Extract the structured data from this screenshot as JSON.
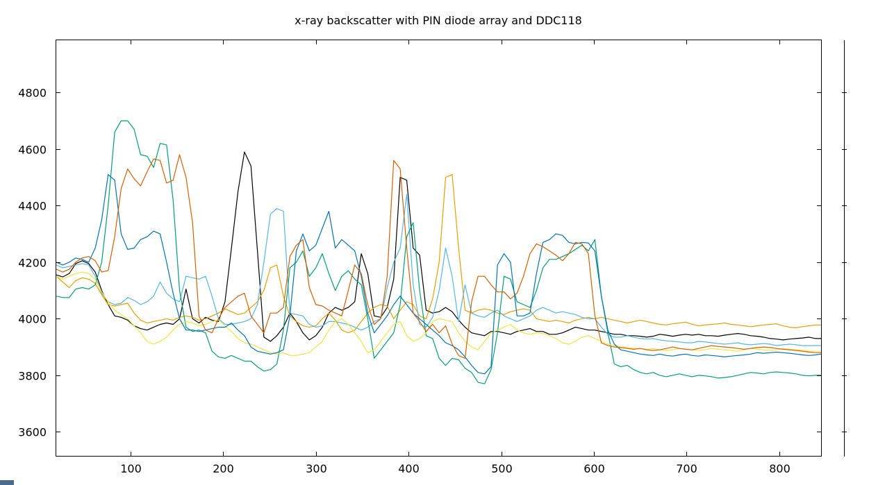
{
  "chart_data": {
    "type": "line",
    "title": "x-ray backscatter with PIN diode array and DDC118",
    "xlabel": "",
    "ylabel": "",
    "xlim": [
      20,
      845
    ],
    "ylim": [
      3515,
      4985
    ],
    "xticks": [
      100,
      200,
      300,
      400,
      500,
      600,
      700,
      800
    ],
    "yticks": [
      3600,
      3800,
      4000,
      4200,
      4400,
      4600,
      4800
    ],
    "grid": false,
    "legend": "none",
    "x": [
      20,
      27,
      34,
      41,
      48,
      55,
      62,
      69,
      76,
      83,
      90,
      97,
      104,
      111,
      118,
      125,
      132,
      139,
      146,
      153,
      160,
      167,
      174,
      181,
      188,
      195,
      202,
      209,
      216,
      223,
      230,
      237,
      244,
      251,
      258,
      265,
      272,
      279,
      286,
      293,
      300,
      307,
      314,
      321,
      328,
      335,
      342,
      349,
      356,
      363,
      370,
      377,
      384,
      391,
      398,
      405,
      412,
      419,
      426,
      433,
      440,
      447,
      454,
      461,
      468,
      475,
      482,
      489,
      496,
      503,
      510,
      517,
      524,
      531,
      538,
      545,
      552,
      559,
      566,
      573,
      580,
      587,
      594,
      601,
      608,
      615,
      622,
      629,
      636,
      643,
      650,
      657,
      664,
      671,
      678,
      685,
      692,
      699,
      706,
      713,
      720,
      727,
      734,
      741,
      748,
      755,
      762,
      769,
      776,
      783,
      790,
      797,
      804,
      811,
      818,
      825,
      832,
      839,
      845
    ],
    "series": [
      {
        "color": "#000000",
        "values": [
          4155,
          4148,
          4160,
          4195,
          4205,
          4195,
          4165,
          4100,
          4050,
          4010,
          4005,
          3995,
          3975,
          3965,
          3960,
          3970,
          3980,
          3985,
          3980,
          4000,
          4105,
          4000,
          3985,
          4005,
          3995,
          3990,
          4060,
          4250,
          4450,
          4590,
          4540,
          4240,
          3935,
          3920,
          3940,
          3970,
          4020,
          3990,
          3950,
          3925,
          3940,
          3970,
          4020,
          4040,
          4030,
          4040,
          4060,
          4230,
          4160,
          4010,
          4005,
          4040,
          4140,
          4500,
          4490,
          4250,
          4225,
          4030,
          4020,
          4025,
          4040,
          4025,
          3995,
          3970,
          3950,
          3945,
          3940,
          3955,
          3955,
          3950,
          3945,
          3955,
          3960,
          3965,
          3955,
          3955,
          3945,
          3945,
          3950,
          3960,
          3970,
          3965,
          3960,
          3960,
          3955,
          3950,
          3945,
          3945,
          3940,
          3940,
          3938,
          3935,
          3938,
          3945,
          3942,
          3938,
          3942,
          3945,
          3942,
          3945,
          3940,
          3940,
          3938,
          3942,
          3945,
          3948,
          3945,
          3940,
          3938,
          3935,
          3930,
          3928,
          3925,
          3928,
          3930,
          3932,
          3935,
          3930,
          3930
        ]
      },
      {
        "color": "#e69f00",
        "values": [
          4150,
          4130,
          4110,
          4135,
          4145,
          4140,
          4125,
          4085,
          4050,
          4045,
          4050,
          4055,
          4020,
          3995,
          3985,
          3990,
          3995,
          4000,
          3995,
          4005,
          4010,
          4005,
          3995,
          4000,
          4010,
          4020,
          4035,
          4025,
          4015,
          4020,
          4040,
          4060,
          4100,
          4180,
          4190,
          4080,
          4010,
          3990,
          3975,
          3970,
          3975,
          4000,
          4020,
          3995,
          3960,
          3950,
          3960,
          3990,
          4020,
          4040,
          4050,
          4045,
          4000,
          4030,
          4060,
          4050,
          4010,
          4000,
          4070,
          4200,
          4500,
          4510,
          4250,
          4030,
          4020,
          4030,
          4035,
          4030,
          4020,
          4015,
          4025,
          4030,
          4035,
          4030,
          4000,
          3995,
          3990,
          3995,
          3990,
          3985,
          3995,
          4000,
          4005,
          4000,
          4005,
          4000,
          3995,
          3990,
          3985,
          3990,
          3995,
          3990,
          3985,
          3980,
          3978,
          3982,
          3985,
          3988,
          3980,
          3975,
          3978,
          3980,
          3982,
          3985,
          3980,
          3978,
          3975,
          3972,
          3975,
          3978,
          3980,
          3982,
          3975,
          3970,
          3968,
          3972,
          3975,
          3978,
          3978
        ]
      },
      {
        "color": "#56b4e9",
        "values": [
          4190,
          4180,
          4185,
          4190,
          4195,
          4190,
          4150,
          4090,
          4060,
          4050,
          4055,
          4075,
          4065,
          4050,
          4060,
          4080,
          4130,
          4090,
          4070,
          4060,
          4150,
          4145,
          4140,
          4150,
          4080,
          4000,
          3980,
          3980,
          3985,
          3990,
          4000,
          4050,
          4200,
          4370,
          4390,
          4380,
          4020,
          4015,
          4010,
          3980,
          3970,
          3975,
          3990,
          3990,
          3985,
          3980,
          3970,
          3960,
          3970,
          3990,
          4000,
          4110,
          4200,
          4250,
          4440,
          4120,
          3980,
          3970,
          4005,
          4100,
          4250,
          4150,
          3990,
          4120,
          4020,
          4010,
          4005,
          4020,
          4030,
          4010,
          4000,
          3990,
          4000,
          4010,
          4030,
          4040,
          4030,
          4020,
          4025,
          4020,
          4015,
          4005,
          4000,
          4000,
          3970,
          3945,
          3935,
          3935,
          3940,
          3935,
          3930,
          3928,
          3930,
          3925,
          3922,
          3920,
          3918,
          3915,
          3915,
          3920,
          3918,
          3915,
          3912,
          3910,
          3912,
          3915,
          3910,
          3908,
          3910,
          3912,
          3910,
          3905,
          3908,
          3910,
          3908,
          3905,
          3905,
          3905,
          3905
        ]
      },
      {
        "color": "#009e73",
        "values": [
          4080,
          4075,
          4075,
          4105,
          4110,
          4105,
          4120,
          4200,
          4400,
          4660,
          4700,
          4700,
          4670,
          4580,
          4575,
          4535,
          4620,
          4615,
          4420,
          4100,
          3970,
          3955,
          3960,
          3950,
          3885,
          3865,
          3860,
          3870,
          3860,
          3850,
          3850,
          3830,
          3815,
          3820,
          3840,
          3960,
          4180,
          4200,
          4240,
          4150,
          4180,
          4230,
          4160,
          4100,
          4150,
          4170,
          4140,
          4120,
          4000,
          3860,
          3890,
          3920,
          3950,
          4050,
          4290,
          4340,
          4100,
          3940,
          3930,
          3860,
          3835,
          3860,
          3855,
          3825,
          3810,
          3775,
          3770,
          3820,
          3950,
          4150,
          4140,
          4060,
          4050,
          4040,
          4100,
          4180,
          4210,
          4210,
          4220,
          4230,
          4245,
          4260,
          4240,
          4280,
          4080,
          3950,
          3840,
          3830,
          3835,
          3820,
          3810,
          3805,
          3810,
          3800,
          3795,
          3800,
          3805,
          3800,
          3795,
          3800,
          3798,
          3795,
          3790,
          3792,
          3795,
          3800,
          3805,
          3810,
          3808,
          3805,
          3810,
          3812,
          3810,
          3808,
          3805,
          3800,
          3798,
          3800,
          3800
        ]
      },
      {
        "color": "#f0e442",
        "values": [
          4150,
          4140,
          4150,
          4160,
          4165,
          4160,
          4140,
          4095,
          4060,
          4030,
          4015,
          4000,
          3975,
          3950,
          3920,
          3910,
          3920,
          3935,
          3960,
          3980,
          3990,
          3985,
          3975,
          3980,
          3990,
          3995,
          3975,
          3955,
          3930,
          3915,
          3910,
          3900,
          3890,
          3880,
          3875,
          3880,
          3870,
          3870,
          3875,
          3880,
          3900,
          3920,
          3960,
          3990,
          4000,
          3980,
          3950,
          3920,
          3880,
          3890,
          3920,
          3950,
          3980,
          3990,
          3940,
          3920,
          3930,
          3950,
          3990,
          4000,
          3995,
          3990,
          3950,
          3920,
          3900,
          3890,
          3920,
          3950,
          3960,
          3970,
          3980,
          3960,
          3950,
          3945,
          3950,
          3948,
          3940,
          3930,
          3915,
          3910,
          3920,
          3935,
          3940,
          3930,
          3920,
          3910,
          3905,
          3900,
          3898,
          3895,
          3895,
          3892,
          3895,
          3890,
          3888,
          3890,
          3895,
          3892,
          3890,
          3888,
          3890,
          3895,
          3892,
          3890,
          3888,
          3885,
          3890,
          3895,
          3892,
          3890,
          3888,
          3890,
          3895,
          3892,
          3890,
          3888,
          3885,
          3885,
          3885
        ]
      },
      {
        "color": "#0072b2",
        "values": [
          4200,
          4190,
          4200,
          4215,
          4210,
          4200,
          4250,
          4350,
          4510,
          4490,
          4300,
          4245,
          4250,
          4280,
          4290,
          4310,
          4300,
          4200,
          4090,
          4000,
          3960,
          3960,
          3955,
          3960,
          3965,
          3970,
          3970,
          3985,
          3960,
          3940,
          3900,
          3885,
          3880,
          3875,
          3880,
          3890,
          4010,
          4240,
          4300,
          4240,
          4260,
          4320,
          4380,
          4250,
          4280,
          4260,
          4240,
          4150,
          4020,
          3950,
          3980,
          4010,
          4050,
          4080,
          4050,
          4020,
          4000,
          3980,
          3960,
          3940,
          3915,
          3905,
          3890,
          3865,
          3835,
          3810,
          3805,
          3830,
          4190,
          4230,
          4200,
          4010,
          4010,
          4020,
          4160,
          4270,
          4280,
          4300,
          4295,
          4270,
          4265,
          4270,
          4268,
          4240,
          4080,
          3960,
          3910,
          3890,
          3885,
          3880,
          3875,
          3872,
          3870,
          3875,
          3870,
          3868,
          3872,
          3875,
          3870,
          3868,
          3872,
          3870,
          3868,
          3865,
          3868,
          3870,
          3872,
          3875,
          3880,
          3878,
          3880,
          3882,
          3880,
          3878,
          3875,
          3872,
          3870,
          3872,
          3875
        ]
      },
      {
        "color": "#d55e00",
        "values": [
          4175,
          4165,
          4175,
          4200,
          4215,
          4220,
          4205,
          4165,
          4170,
          4290,
          4460,
          4530,
          4495,
          4470,
          4520,
          4565,
          4560,
          4480,
          4490,
          4580,
          4500,
          4340,
          4010,
          3960,
          3950,
          4000,
          4040,
          4060,
          4080,
          4090,
          4010,
          3980,
          3950,
          4020,
          4020,
          4040,
          4220,
          4260,
          4280,
          4110,
          4050,
          4045,
          4030,
          4020,
          4010,
          4100,
          4190,
          4160,
          4050,
          3980,
          4000,
          4150,
          4560,
          4530,
          4250,
          4020,
          3990,
          3955,
          3980,
          3950,
          3975,
          3910,
          3870,
          3860,
          4060,
          4150,
          4150,
          4120,
          4095,
          4095,
          4070,
          4090,
          4150,
          4230,
          4265,
          4255,
          4240,
          4225,
          4205,
          4230,
          4270,
          4265,
          4230,
          4010,
          3915,
          3905,
          3900,
          3898,
          3895,
          3892,
          3895,
          3890,
          3888,
          3890,
          3895,
          3900,
          3895,
          3892,
          3890,
          3895,
          3900,
          3905,
          3902,
          3900,
          3898,
          3895,
          3892,
          3895,
          3898,
          3900,
          3898,
          3895,
          3892,
          3890,
          3888,
          3885,
          3882,
          3880,
          3880
        ]
      }
    ]
  },
  "ui": {
    "right_axis_label": ""
  }
}
